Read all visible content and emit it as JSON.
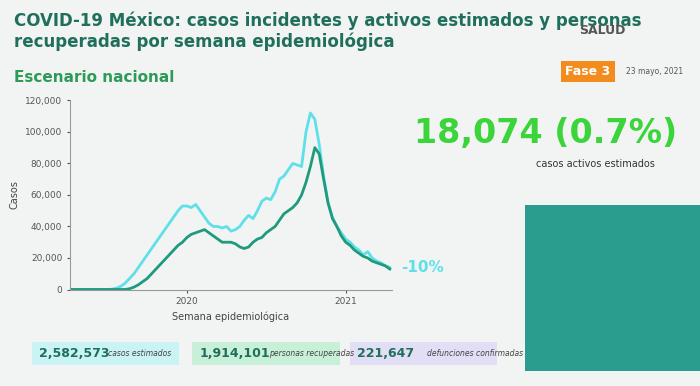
{
  "header": {
    "logo": "SALUD",
    "phase": "Fase 3",
    "date": "23 mayo, 2021"
  },
  "chart_data": {
    "type": "line",
    "title": "COVID-19 México: casos incidentes y activos estimados y personas recuperadas por semana epidemiológica",
    "subtitle": "Escenario nacional",
    "x_label": "Semana epidemiológica",
    "y_label": "Casos",
    "categories": [
      null,
      null,
      null,
      null,
      null,
      null,
      null,
      null,
      null,
      null,
      null,
      null,
      null,
      null,
      null,
      null,
      null,
      null,
      null,
      null,
      null,
      null,
      null,
      null,
      null,
      null,
      "2020",
      null,
      null,
      null,
      null,
      null,
      null,
      null,
      null,
      null,
      null,
      null,
      null,
      null,
      null,
      null,
      null,
      null,
      null,
      null,
      null,
      null,
      null,
      null,
      null,
      null,
      null,
      null,
      null,
      null,
      null,
      null,
      null,
      null,
      null,
      null,
      "2021",
      null,
      null,
      null,
      null,
      null,
      null,
      null,
      null,
      null,
      null
    ],
    "series": [
      {
        "color": "#5fe0e8",
        "values": [
          0,
          0,
          0,
          0,
          0,
          0,
          0,
          0,
          0,
          200,
          800,
          2000,
          4000,
          7000,
          10000,
          14000,
          18000,
          22000,
          26000,
          30000,
          34000,
          38000,
          42000,
          46000,
          50000,
          53000,
          53000,
          52000,
          54000,
          50000,
          46000,
          42000,
          40000,
          40000,
          39000,
          40000,
          37000,
          38000,
          40000,
          44000,
          47000,
          45000,
          50000,
          56000,
          58000,
          57000,
          62000,
          70000,
          72000,
          76000,
          80000,
          79000,
          78000,
          100000,
          112000,
          108000,
          92000,
          72000,
          55000,
          46000,
          40000,
          36000,
          32000,
          30000,
          27000,
          25000,
          22000,
          24000,
          20000,
          18000,
          17000,
          15000,
          14000
        ]
      },
      {
        "color": "#1f9a7c",
        "values": [
          0,
          0,
          0,
          0,
          0,
          0,
          0,
          0,
          0,
          0,
          0,
          0,
          0,
          500,
          1500,
          3000,
          5000,
          7000,
          10000,
          13000,
          16000,
          19000,
          22000,
          25000,
          28000,
          30000,
          33000,
          35000,
          36000,
          37000,
          38000,
          36000,
          34000,
          32000,
          30000,
          30000,
          30000,
          29000,
          27000,
          26000,
          27000,
          30000,
          32000,
          33000,
          36000,
          38000,
          40000,
          44000,
          48000,
          50000,
          52000,
          55000,
          60000,
          68000,
          78000,
          90000,
          86000,
          70000,
          55000,
          45000,
          40000,
          34000,
          30000,
          28000,
          25000,
          23000,
          21000,
          20000,
          18000,
          17000,
          16000,
          15000,
          13000
        ]
      }
    ],
    "ylim": [
      0,
      120000
    ],
    "yticks": [
      0,
      {
        "value": 20000,
        "label": "20,000"
      },
      {
        "value": 40000,
        "label": "40,000"
      },
      {
        "value": 60000,
        "label": "60,000"
      },
      {
        "value": 80000,
        "label": "80,000"
      },
      {
        "value": 100000,
        "label": "100,000"
      },
      {
        "value": 120000,
        "label": "120,000"
      }
    ],
    "grid": false,
    "annotations": [
      {
        "text": "-10%",
        "x": 72,
        "y": 14000,
        "color": "#5fe0e8"
      }
    ]
  },
  "highlight": {
    "value": "18,074 (0.7%)",
    "label": "casos activos estimados"
  },
  "stats": [
    {
      "value": "2,582,573",
      "label": "casos estimados",
      "color": "#c9f3f5"
    },
    {
      "value": "1,914,101",
      "label": "personas recuperadas",
      "color": "#c8f0d8"
    },
    {
      "value": "221,647",
      "label": "defunciones confirmadas",
      "color": "#e2def5"
    }
  ]
}
